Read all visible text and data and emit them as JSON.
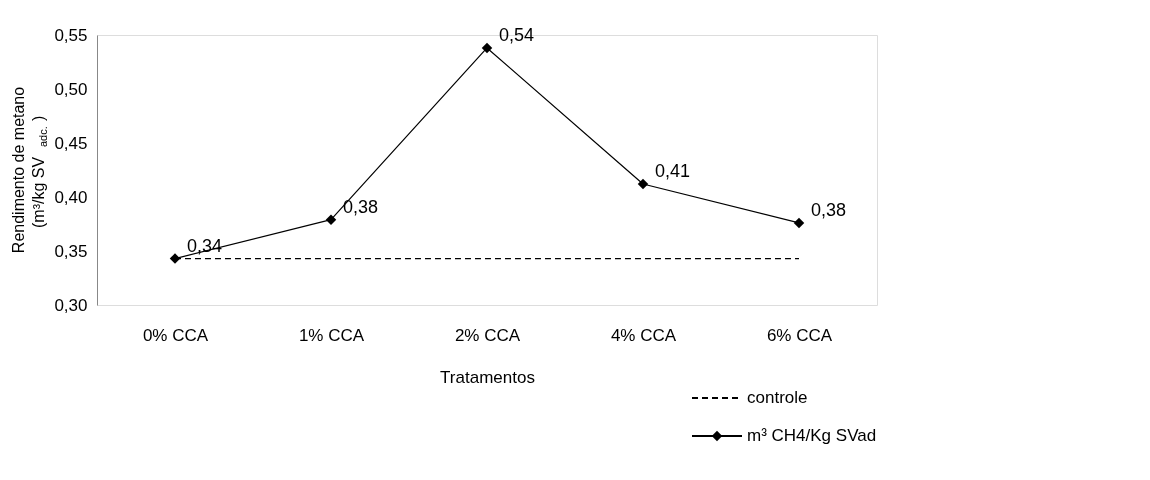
{
  "chart_data": {
    "type": "line",
    "xlabel": "Tratamentos",
    "ylabel": "Rendimento de metano (m³/kg SV$_{adc.}$)",
    "categories": [
      "0% CCA",
      "1% CCA",
      "2% CCA",
      "4% CCA",
      "6% CCA"
    ],
    "series": [
      {
        "name": "controle",
        "color": "#000000",
        "values": [
          0.343,
          0.343,
          0.343,
          0.343,
          0.343
        ],
        "line_style": "dashed",
        "marker": "none"
      },
      {
        "name": "m³ CH4/Kg SVad",
        "color": "#000000",
        "values": [
          0.343,
          0.379,
          0.538,
          0.412,
          0.376
        ],
        "line_style": "solid",
        "marker": "diamond",
        "value_labels": [
          "0,34",
          "0,38",
          "0,54",
          "0,41",
          "0,38"
        ]
      }
    ],
    "ylim": [
      0.3,
      0.55
    ],
    "yticks": [
      {
        "value": 0.3,
        "label": "0,30"
      },
      {
        "value": 0.35,
        "label": "0,35"
      },
      {
        "value": 0.4,
        "label": "0,40"
      },
      {
        "value": 0.45,
        "label": "0,45"
      },
      {
        "value": 0.5,
        "label": "0,50"
      },
      {
        "value": 0.55,
        "label": "0,55"
      }
    ],
    "grid": false,
    "legend": "bottom right"
  }
}
